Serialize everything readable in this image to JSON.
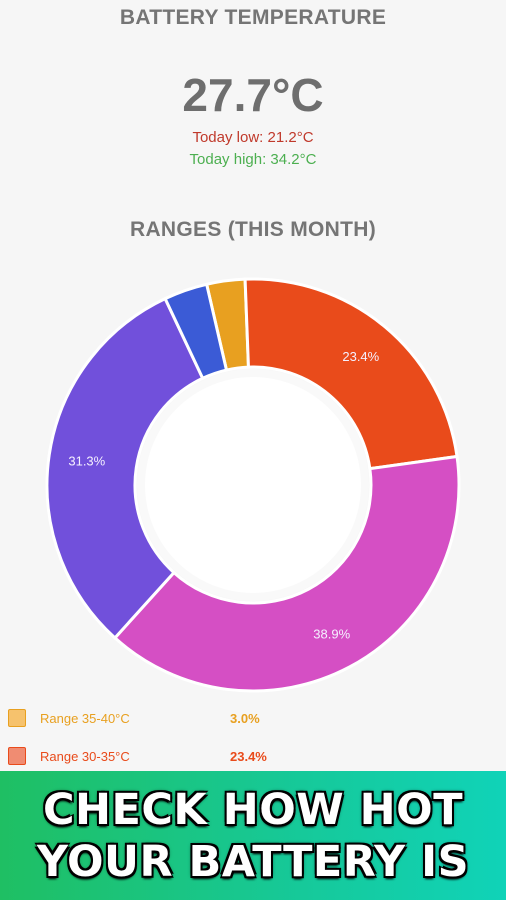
{
  "header": {
    "title": "BATTERY TEMPERATURE",
    "current_temp": "27.7°C",
    "today_low": "Today low: 21.2°C",
    "today_high": "Today high: 34.2°C"
  },
  "ranges": {
    "title": "RANGES (THIS MONTH)"
  },
  "chart_data": {
    "type": "pie",
    "title": "RANGES (THIS MONTH)",
    "donut": true,
    "slices": [
      {
        "name": "Range 35-40°C",
        "value": 3.0,
        "label": "",
        "color": "#e8a020"
      },
      {
        "name": "Range 30-35°C",
        "value": 23.4,
        "label": "23.4%",
        "color": "#e94b1b"
      },
      {
        "name": "",
        "value": 38.9,
        "label": "38.9%",
        "color": "#d54fc4"
      },
      {
        "name": "",
        "value": 31.3,
        "label": "31.3%",
        "color": "#7150db"
      },
      {
        "name": "",
        "value": 3.4,
        "label": "",
        "color": "#3b5bd6"
      }
    ]
  },
  "legend": [
    {
      "label": "Range 35-40°C",
      "value": "3.0%",
      "text_color": "#e8a020",
      "swatch_fill": "#f6c26d",
      "swatch_border": "#e8a020"
    },
    {
      "label": "Range 30-35°C",
      "value": "23.4%",
      "text_color": "#e94b1b",
      "swatch_fill": "#f08c72",
      "swatch_border": "#e94b1b"
    }
  ],
  "banner": {
    "line1": "CHECK HOW HOT",
    "line2": "YOUR BATTERY IS"
  }
}
